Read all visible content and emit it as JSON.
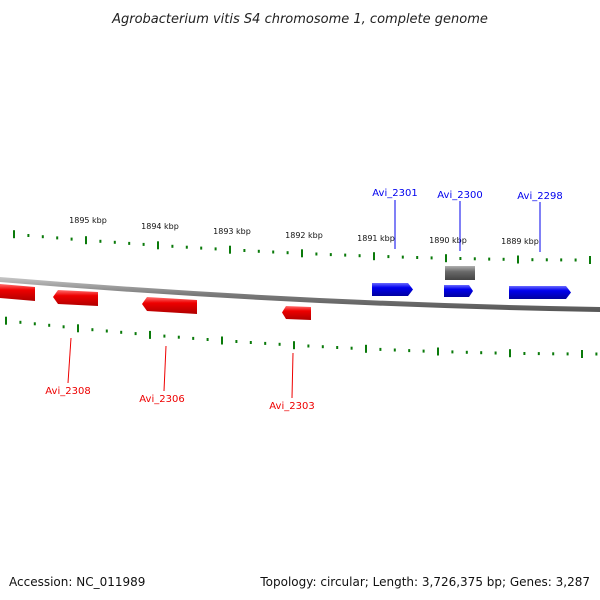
{
  "title": "Agrobacterium vitis S4 chromosome 1, complete genome",
  "footer": {
    "accession": "Accession: NC_011989",
    "summary": "Topology: circular; Length: 3,726,375 bp; Genes: 3,287"
  },
  "colors": {
    "forward_strand": "#0000ee",
    "reverse_strand": "#ee0000",
    "other_feature": "#6a6a6a",
    "ticks": "#0a7a0a",
    "backbone": "#808080"
  },
  "scale_labels": [
    "1895 kbp",
    "1894 kbp",
    "1893 kbp",
    "1892 kbp",
    "1891 kbp",
    "1890 kbp",
    "1889 kbp"
  ],
  "genes": [
    {
      "label": "Avi_2301",
      "strand": "forward"
    },
    {
      "label": "Avi_2300",
      "strand": "forward"
    },
    {
      "label": "Avi_2298",
      "strand": "forward"
    },
    {
      "label": "Avi_2308",
      "strand": "reverse"
    },
    {
      "label": "Avi_2306",
      "strand": "reverse"
    },
    {
      "label": "Avi_2303",
      "strand": "reverse"
    }
  ]
}
